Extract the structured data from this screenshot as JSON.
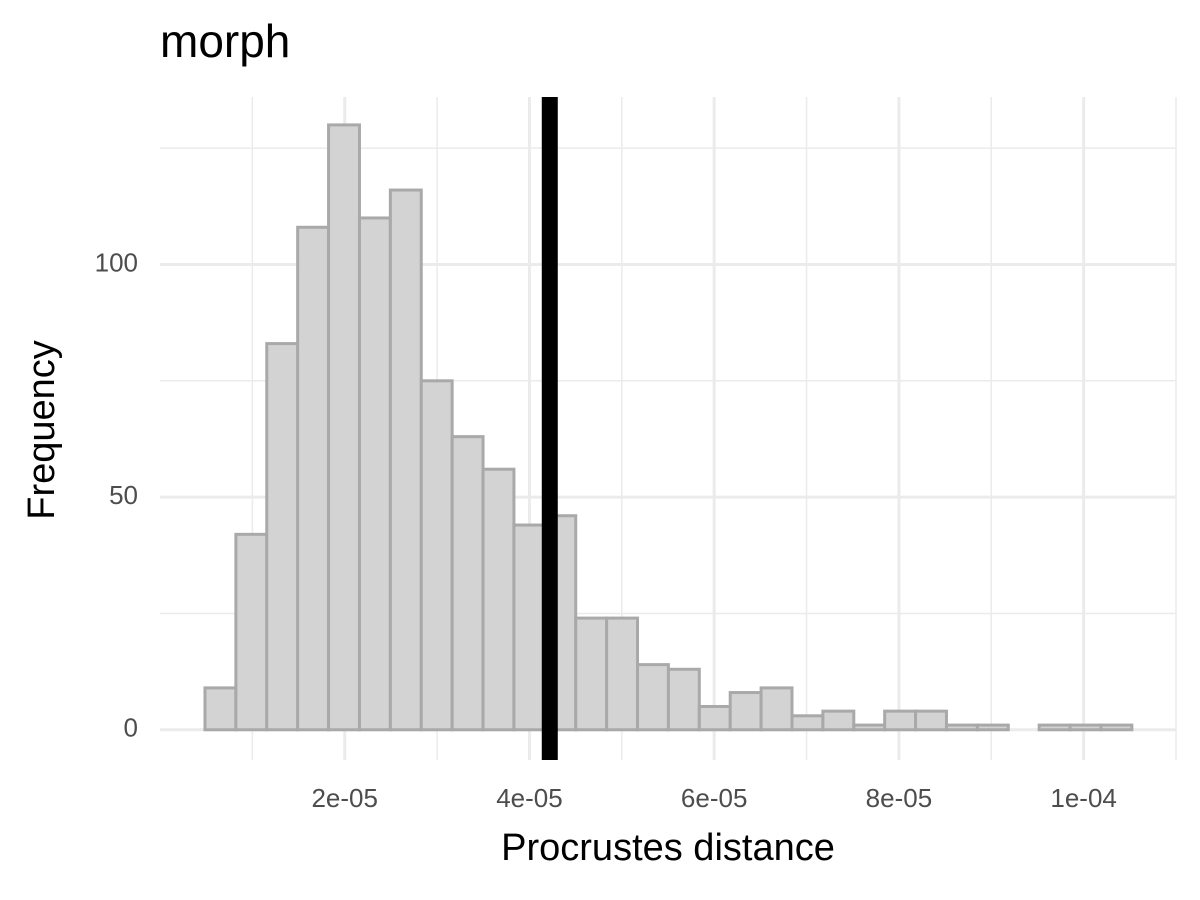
{
  "chart_data": {
    "type": "histogram",
    "title": "morph",
    "x_label": "Procrustes distance",
    "y_label": "Frequency",
    "bins": [
      4.87e-06,
      8.215e-06,
      1.156e-05,
      1.4905e-05,
      1.825e-05,
      2.1595e-05,
      2.494e-05,
      2.8285e-05,
      3.163e-05,
      3.4975e-05,
      3.832e-05,
      4.1665e-05,
      4.501e-05,
      4.8355e-05,
      5.17e-05,
      5.5045e-05,
      5.839e-05,
      6.1735e-05,
      6.508e-05,
      6.8425e-05,
      7.177e-05,
      7.5115e-05,
      7.846e-05,
      8.1805e-05,
      8.515e-05,
      8.8495e-05,
      9.184e-05,
      9.5185e-05,
      9.853e-05,
      0.000101875,
      0.00010522
    ],
    "values": [
      9,
      42,
      83,
      108,
      130,
      110,
      116,
      75,
      63,
      56,
      44,
      46,
      24,
      24,
      14,
      13,
      5,
      8,
      9,
      3,
      4,
      1,
      4,
      4,
      1,
      1,
      0,
      1,
      1,
      1
    ],
    "color": "#d3d3d3",
    "edge_color": "#a9a9a9",
    "vline": 4.22e-05,
    "vline_color": "#000000",
    "xlim": [
      0,
      0.00011
    ],
    "xticks": [
      {
        "value": 2e-05,
        "label": "2e-05"
      },
      {
        "value": 4e-05,
        "label": "4e-05"
      },
      {
        "value": 6e-05,
        "label": "6e-05"
      },
      {
        "value": 8e-05,
        "label": "8e-05"
      },
      {
        "value": 0.0001,
        "label": "1e-04"
      }
    ],
    "x_minor_ticks": [
      1e-05,
      3e-05,
      5e-05,
      7e-05,
      9e-05,
      0.00011
    ],
    "ylim": [
      -6.5,
      136
    ],
    "yticks": [
      0,
      50,
      100
    ],
    "y_minor_ticks": [
      25,
      75,
      125
    ],
    "grid": true
  }
}
